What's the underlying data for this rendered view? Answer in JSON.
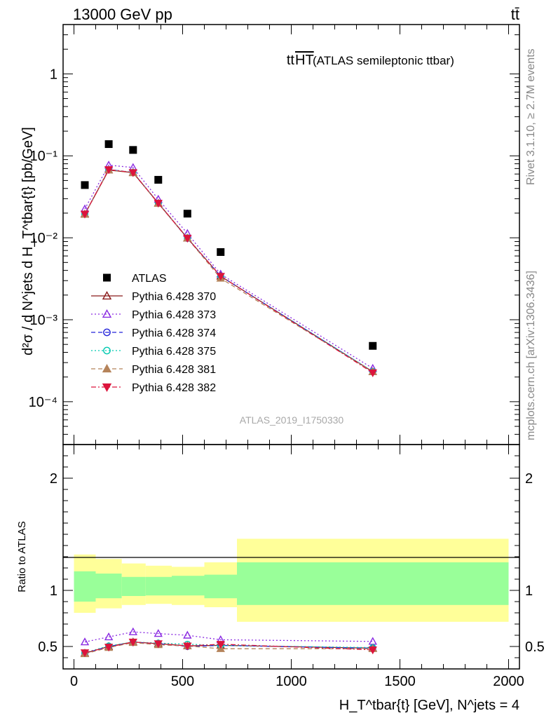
{
  "header": {
    "left": "13000 GeV pp",
    "right": "tt̄",
    "side_top": "Rivet 3.1.10, ≥ 2.7M events",
    "side_bottom": "mcplots.cern.ch [arXiv:1306.3436]"
  },
  "chart_data": {
    "type": "line",
    "title_main": "tt",
    "title_over": "HT",
    "title_suffix": " (ATLAS semileptonic ttbar)",
    "watermark": "ATLAS_2019_I1750330",
    "ylabel_main": "d²σ / d N^jets d H_T^tbar{t} [pb/GeV]",
    "ylabel_ratio": "Ratio to ATLAS",
    "xlabel": "H_T^tbar{t} [GeV], N^jets = 4",
    "x_ticks": [
      "0",
      "500",
      "1000",
      "1500",
      "2000"
    ],
    "y_ticks_main": [
      "10⁻⁴",
      "10⁻³",
      "10⁻²",
      "10⁻¹",
      "1"
    ],
    "y_ticks_ratio": [
      "0.5",
      "1",
      "2"
    ],
    "xlim": [
      -50,
      2050
    ],
    "ylim_main": [
      3e-05,
      4
    ],
    "ylim_ratio": [
      0.3,
      2.3
    ],
    "x": [
      50,
      160,
      272,
      388,
      522,
      675,
      1375
    ],
    "data": {
      "name": "ATLAS",
      "values": [
        0.044,
        0.139,
        0.118,
        0.051,
        0.0197,
        0.0067,
        0.00048
      ]
    },
    "series": [
      {
        "name": "Pythia 6.428 370",
        "color": "#8b1a1a",
        "marker": "triangle-open",
        "dash": "solid",
        "values": [
          0.0195,
          0.067,
          0.0625,
          0.0265,
          0.0099,
          0.0034,
          0.000232
        ]
      },
      {
        "name": "Pythia 6.428 373",
        "color": "#8a2be2",
        "marker": "triangle-open",
        "dash": "dotted",
        "values": [
          0.0225,
          0.077,
          0.072,
          0.0295,
          0.0113,
          0.0036,
          0.000255
        ]
      },
      {
        "name": "Pythia 6.428 374",
        "color": "#2323d9",
        "marker": "circle-open",
        "dash": "dashed",
        "values": [
          0.0195,
          0.068,
          0.0625,
          0.0265,
          0.0098,
          0.0034,
          0.000233
        ]
      },
      {
        "name": "Pythia 6.428 375",
        "color": "#00c9b0",
        "marker": "circle-open",
        "dash": "dotted",
        "values": [
          0.0195,
          0.068,
          0.063,
          0.0265,
          0.01,
          0.0034,
          0.000234
        ]
      },
      {
        "name": "Pythia 6.428 381",
        "color": "#b5835a",
        "marker": "triangle-filled",
        "dash": "dashed",
        "values": [
          0.0193,
          0.067,
          0.062,
          0.0262,
          0.0099,
          0.0032,
          0.000232
        ]
      },
      {
        "name": "Pythia 6.428 382",
        "color": "#dc143c",
        "marker": "triangle-down-filled",
        "dash": "dashdot",
        "values": [
          0.0195,
          0.068,
          0.0625,
          0.0265,
          0.0099,
          0.0034,
          0.000226
        ]
      }
    ],
    "ratio_series": [
      {
        "name": "Pythia 6.428 370",
        "values": [
          0.44,
          0.5,
          0.54,
          0.525,
          0.505,
          0.51,
          0.485
        ]
      },
      {
        "name": "Pythia 6.428 373",
        "values": [
          0.54,
          0.585,
          0.63,
          0.615,
          0.6,
          0.56,
          0.545
        ]
      },
      {
        "name": "Pythia 6.428 374",
        "values": [
          0.44,
          0.5,
          0.535,
          0.525,
          0.5,
          0.51,
          0.485
        ]
      },
      {
        "name": "Pythia 6.428 375",
        "values": [
          0.445,
          0.505,
          0.54,
          0.53,
          0.52,
          0.51,
          0.49
        ]
      },
      {
        "name": "Pythia 6.428 381",
        "values": [
          0.435,
          0.49,
          0.535,
          0.515,
          0.505,
          0.48,
          0.48
        ]
      },
      {
        "name": "Pythia 6.428 382",
        "values": [
          0.445,
          0.495,
          0.54,
          0.525,
          0.505,
          0.52,
          0.47
        ]
      }
    ],
    "bands": {
      "bins": [
        0,
        100,
        220,
        330,
        450,
        600,
        750,
        2000
      ],
      "inner_lo": [
        0.9,
        0.93,
        0.95,
        0.955,
        0.955,
        0.93,
        0.87
      ],
      "inner_hi": [
        1.17,
        1.15,
        1.12,
        1.12,
        1.13,
        1.14,
        1.25
      ],
      "outer_lo": [
        0.8,
        0.84,
        0.87,
        0.88,
        0.87,
        0.85,
        0.72
      ],
      "outer_hi": [
        1.32,
        1.28,
        1.24,
        1.22,
        1.21,
        1.25,
        1.46
      ],
      "inner_color": "#99ff99",
      "outer_color": "#ffff99"
    },
    "legend_position": "middle-left"
  }
}
